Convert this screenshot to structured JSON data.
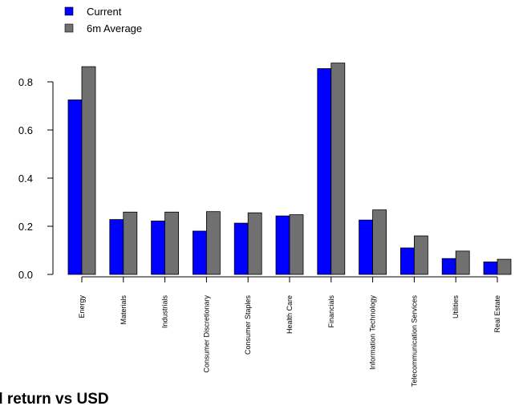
{
  "chart_data": {
    "type": "bar",
    "categories": [
      "Energy",
      "Materials",
      "Industrials",
      "Consumer Discretionary",
      "Consumer Staples",
      "Health Care",
      "Financials",
      "Information Technology",
      "Telecommunication Services",
      "Utilities",
      "Real Estate"
    ],
    "series": [
      {
        "name": "Current",
        "color": "#0000ff",
        "values": [
          0.725,
          0.228,
          0.222,
          0.18,
          0.213,
          0.243,
          0.855,
          0.226,
          0.11,
          0.066,
          0.052
        ]
      },
      {
        "name": "6m Average",
        "color": "#707070",
        "values": [
          0.863,
          0.259,
          0.259,
          0.261,
          0.256,
          0.248,
          0.878,
          0.268,
          0.16,
          0.097,
          0.063
        ]
      }
    ],
    "ylim": [
      0,
      0.8
    ],
    "yticks": [
      "0.0",
      "0.2",
      "0.4",
      "0.6",
      "0.8"
    ],
    "grid": false,
    "legend_position": "top-left",
    "title": "",
    "xlabel": "",
    "ylabel": ""
  },
  "caption": "d return vs USD"
}
